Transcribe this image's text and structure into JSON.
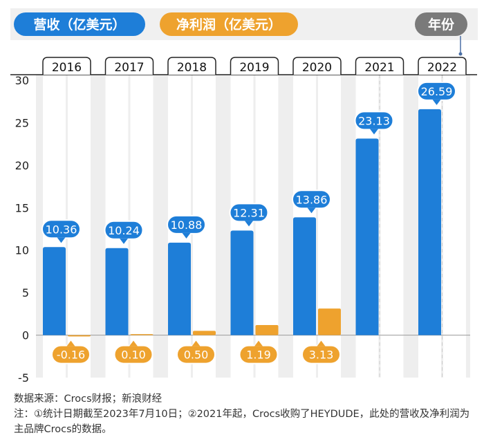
{
  "legend": {
    "revenue_label": "营收（亿美元）",
    "profit_label": "净利润（亿美元）",
    "year_label": "年份"
  },
  "colors": {
    "revenue": "#1e7ed8",
    "profit": "#eea22e",
    "year_badge": "#7a7a7a"
  },
  "notes": {
    "source": "数据来源：Crocs财报；新浪财经",
    "note": "注：①统计日期截至2023年7月10日；②2021年起，Crocs收购了HEYDUDE，此处的营收及净利润为主品牌Crocs的数据。"
  },
  "chart_data": {
    "type": "bar",
    "categories": [
      "2016",
      "2017",
      "2018",
      "2019",
      "2020",
      "2021",
      "2022"
    ],
    "series": [
      {
        "name": "营收（亿美元）",
        "values": [
          10.36,
          10.24,
          10.88,
          12.31,
          13.86,
          23.13,
          26.59
        ],
        "labels": [
          "10.36",
          "10.24",
          "10.88",
          "12.31",
          "13.86",
          "23.13",
          "26.59"
        ]
      },
      {
        "name": "净利润（亿美元）",
        "values": [
          -0.16,
          0.1,
          0.5,
          1.19,
          3.13,
          null,
          null
        ],
        "labels": [
          "-0.16",
          "0.10",
          "0.50",
          "1.19",
          "3.13",
          "",
          ""
        ]
      }
    ],
    "ylim": [
      -5,
      30
    ],
    "yticks": [
      "30",
      "25",
      "20",
      "15",
      "10",
      "5",
      "0",
      "-5"
    ],
    "xlabel": "年份",
    "ylabel": "",
    "grid": true,
    "legend_position": "top"
  }
}
